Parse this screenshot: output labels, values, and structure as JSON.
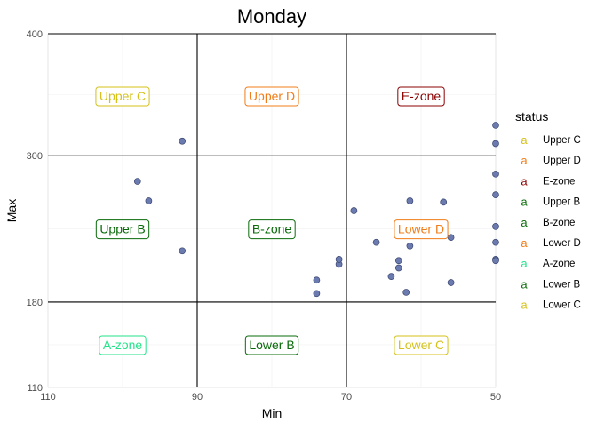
{
  "chart_data": {
    "type": "scatter",
    "title": "Monday",
    "xlabel": "Min",
    "ylabel": "Max",
    "xlim": [
      110,
      50
    ],
    "ylim": [
      110,
      400
    ],
    "x_reversed": true,
    "x_ticks": [
      110,
      90,
      70,
      50
    ],
    "y_ticks": [
      110,
      180,
      300,
      400
    ],
    "x_cuts": [
      90,
      70
    ],
    "y_cuts": [
      180,
      300
    ],
    "grid": true,
    "point_color": "#6b7bb0",
    "points": [
      {
        "x": 92,
        "y": 312
      },
      {
        "x": 98,
        "y": 279
      },
      {
        "x": 96.5,
        "y": 263
      },
      {
        "x": 92,
        "y": 222
      },
      {
        "x": 74,
        "y": 198
      },
      {
        "x": 74,
        "y": 187
      },
      {
        "x": 71,
        "y": 211
      },
      {
        "x": 71,
        "y": 215
      },
      {
        "x": 69,
        "y": 255
      },
      {
        "x": 66,
        "y": 229
      },
      {
        "x": 64,
        "y": 201
      },
      {
        "x": 63,
        "y": 208
      },
      {
        "x": 63,
        "y": 214
      },
      {
        "x": 62,
        "y": 188
      },
      {
        "x": 61.5,
        "y": 263
      },
      {
        "x": 61.5,
        "y": 226
      },
      {
        "x": 57,
        "y": 262
      },
      {
        "x": 56,
        "y": 233
      },
      {
        "x": 56,
        "y": 196
      },
      {
        "x": 50,
        "y": 325
      },
      {
        "x": 50,
        "y": 310
      },
      {
        "x": 50,
        "y": 285
      },
      {
        "x": 50,
        "y": 268
      },
      {
        "x": 50,
        "y": 242
      },
      {
        "x": 50,
        "y": 229
      },
      {
        "x": 50,
        "y": 215
      },
      {
        "x": 50,
        "y": 214
      }
    ],
    "zones": [
      {
        "label": "Upper C",
        "x": 100,
        "y": 349,
        "color": "#d4c21a"
      },
      {
        "label": "Upper D",
        "x": 80,
        "y": 349,
        "color": "#f07d1a"
      },
      {
        "label": "E-zone",
        "x": 60,
        "y": 349,
        "color": "#8b0000"
      },
      {
        "label": "Upper B",
        "x": 100,
        "y": 240,
        "color": "#0a6b0a"
      },
      {
        "label": "B-zone",
        "x": 80,
        "y": 240,
        "color": "#0a6b0a"
      },
      {
        "label": "Lower D",
        "x": 60,
        "y": 240,
        "color": "#f07d1a"
      },
      {
        "label": "A-zone",
        "x": 100,
        "y": 145,
        "color": "#25e38a"
      },
      {
        "label": "Lower B",
        "x": 80,
        "y": 145,
        "color": "#0a6b0a"
      },
      {
        "label": "Lower C",
        "x": 60,
        "y": 145,
        "color": "#d4c21a"
      }
    ],
    "legend": {
      "title": "status",
      "placement": "right",
      "items": [
        {
          "label": "Upper C",
          "color": "#d4c21a"
        },
        {
          "label": "Upper D",
          "color": "#f07d1a"
        },
        {
          "label": "E-zone",
          "color": "#8b0000"
        },
        {
          "label": "Upper B",
          "color": "#0a6b0a"
        },
        {
          "label": "B-zone",
          "color": "#0a6b0a"
        },
        {
          "label": "Lower D",
          "color": "#f07d1a"
        },
        {
          "label": "A-zone",
          "color": "#25e38a"
        },
        {
          "label": "Lower B",
          "color": "#0a6b0a"
        },
        {
          "label": "Lower C",
          "color": "#d4c21a"
        }
      ]
    }
  }
}
